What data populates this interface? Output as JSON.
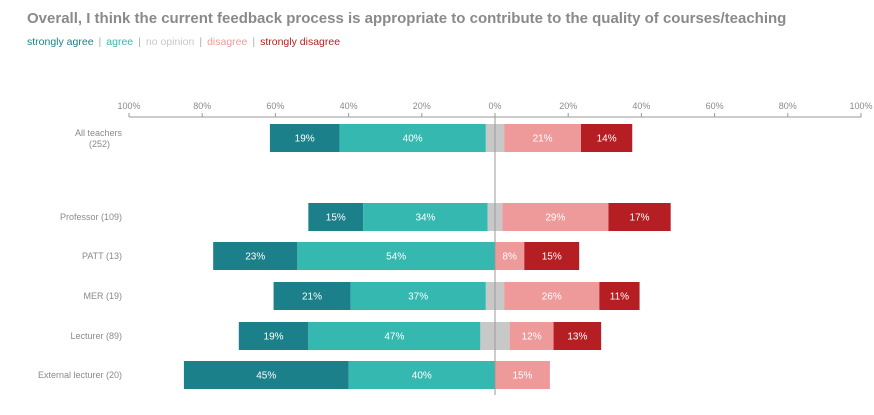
{
  "chart_data": {
    "type": "bar",
    "subtype": "diverging-stacked-horizontal",
    "title": "Overall, I think the current feedback process is appropriate to contribute to the quality of courses/teaching",
    "legend": [
      {
        "name": "strongly agree",
        "color": "#1b808a"
      },
      {
        "name": "agree",
        "color": "#34b8b0"
      },
      {
        "name": "no opinion",
        "color": "#c8c8c8"
      },
      {
        "name": "disagree",
        "color": "#ee9a9b"
      },
      {
        "name": "strongly disagree",
        "color": "#b51e22"
      }
    ],
    "legend_placement": "top-left",
    "xaxis": {
      "range": [
        -100,
        100
      ],
      "ticks": [
        -100,
        -80,
        -60,
        -40,
        -20,
        0,
        20,
        40,
        60,
        80,
        100
      ],
      "tick_labels": [
        "100%",
        "80%",
        "60%",
        "40%",
        "20%",
        "0%",
        "20%",
        "40%",
        "60%",
        "80%",
        "100%"
      ]
    },
    "categories": [
      {
        "label": "All teachers",
        "label2": "(252)",
        "strongly_agree": 19,
        "agree": 40,
        "no_opinion": 5,
        "disagree": 21,
        "strongly_disagree": 14,
        "gap_after": true
      },
      {
        "label": "Professor (109)",
        "strongly_agree": 15,
        "agree": 34,
        "no_opinion": 4,
        "disagree": 29,
        "strongly_disagree": 17
      },
      {
        "label": "PATT (13)",
        "strongly_agree": 23,
        "agree": 54,
        "no_opinion": 0,
        "disagree": 8,
        "strongly_disagree": 15
      },
      {
        "label": "MER (19)",
        "strongly_agree": 21,
        "agree": 37,
        "no_opinion": 5,
        "disagree": 26,
        "strongly_disagree": 11
      },
      {
        "label": "Lecturer (89)",
        "strongly_agree": 19,
        "agree": 47,
        "no_opinion": 8,
        "disagree": 12,
        "strongly_disagree": 13
      },
      {
        "label": "External lecturer (20)",
        "strongly_agree": 45,
        "agree": 40,
        "no_opinion": 0,
        "disagree": 15,
        "strongly_disagree": 0
      }
    ],
    "label_suffix": "%"
  }
}
